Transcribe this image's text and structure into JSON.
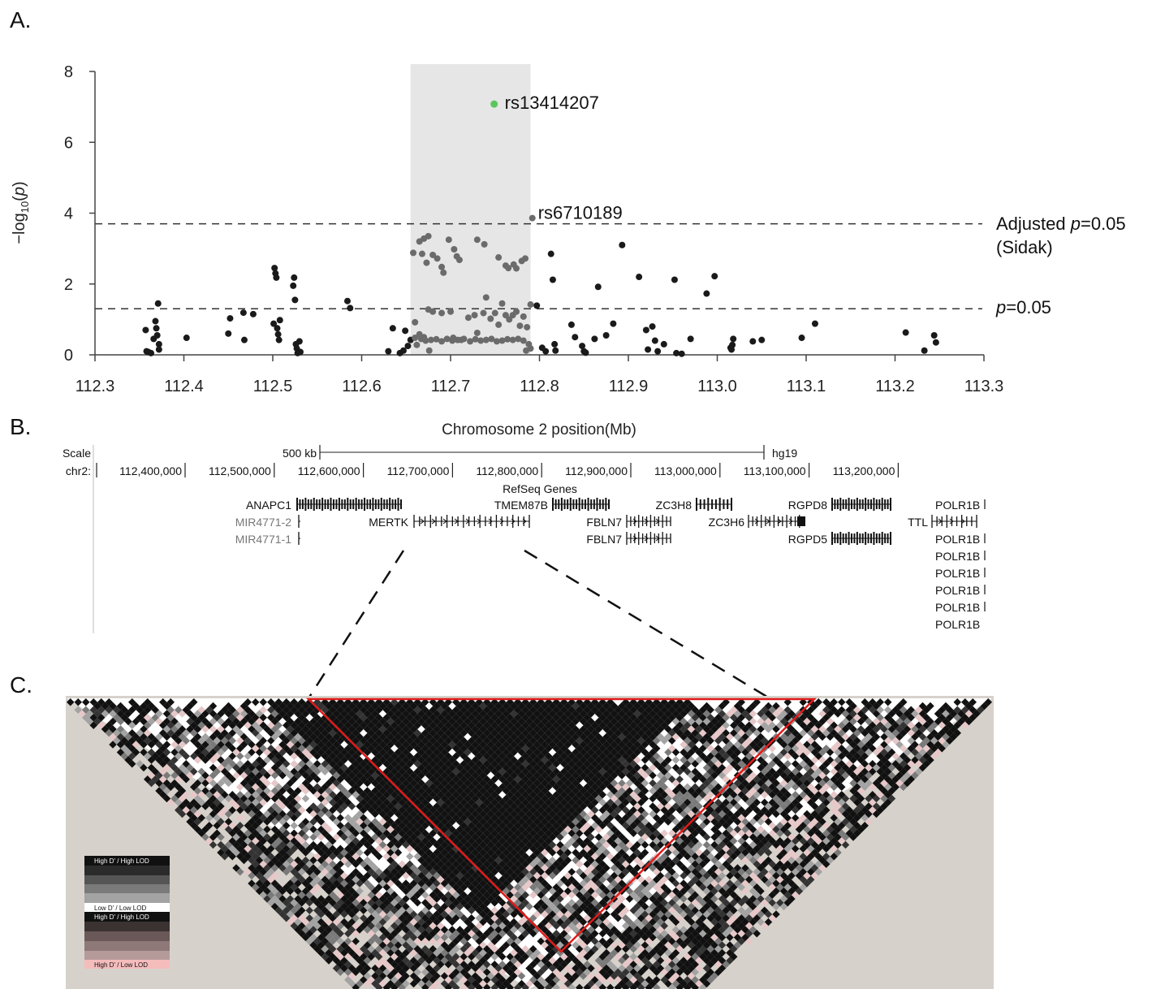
{
  "panels": {
    "a": "A.",
    "b": "B.",
    "c": "C."
  },
  "colors": {
    "highlight_region": "#e6e6e6",
    "point_dark": "#1a1a1a",
    "point_in_region": "#6b6b6b",
    "lead_snp": "#5cc65c",
    "ld_block_outline": "#e01b1b",
    "ld_background": "#d6d2cb"
  },
  "chart_data": {
    "type": "scatter",
    "title": "",
    "xlabel": "Chromosome 2 position(Mb)",
    "ylabel": "−log10(p)",
    "xlim": [
      112.3,
      113.3
    ],
    "ylim": [
      0,
      8
    ],
    "x_ticks": [
      "112.3",
      "112.4",
      "112.5",
      "112.6",
      "112.7",
      "112.8",
      "112.9",
      "113.0",
      "113.1",
      "113.2",
      "113.3"
    ],
    "y_ticks": [
      "0",
      "2",
      "4",
      "6",
      "8"
    ],
    "highlight_region": [
      112.655,
      112.79
    ],
    "thresholds": [
      {
        "name": "Adjusted p=0.05 (Sidak)",
        "label_line1_prefix": "Adjusted ",
        "label_line1_italic": "p",
        "label_line1_suffix": "=0.05",
        "label_line2": "(Sidak)",
        "y": 3.7
      },
      {
        "name": "p=0.05",
        "label_italic": "p",
        "label_suffix": "=0.05",
        "y": 1.3
      }
    ],
    "labeled_snps": [
      {
        "name": "rs13414207",
        "x": 112.749,
        "y": 7.08
      },
      {
        "name": "rs6710189",
        "x": 112.792,
        "y": 3.86
      }
    ],
    "points": [
      [
        112.357,
        0.7
      ],
      [
        112.358,
        0.1
      ],
      [
        112.36,
        0.08
      ],
      [
        112.363,
        0.05
      ],
      [
        112.366,
        0.45
      ],
      [
        112.368,
        0.95
      ],
      [
        112.369,
        0.75
      ],
      [
        112.37,
        0.55
      ],
      [
        112.371,
        1.45
      ],
      [
        112.372,
        0.3
      ],
      [
        112.372,
        0.15
      ],
      [
        112.403,
        0.48
      ],
      [
        112.45,
        0.6
      ],
      [
        112.452,
        1.03
      ],
      [
        112.467,
        1.19
      ],
      [
        112.468,
        0.42
      ],
      [
        112.478,
        1.15
      ],
      [
        112.501,
        0.88
      ],
      [
        112.502,
        2.45
      ],
      [
        112.503,
        2.3
      ],
      [
        112.504,
        2.18
      ],
      [
        112.505,
        0.75
      ],
      [
        112.506,
        0.58
      ],
      [
        112.507,
        0.42
      ],
      [
        112.508,
        0.98
      ],
      [
        112.523,
        1.95
      ],
      [
        112.524,
        2.18
      ],
      [
        112.525,
        1.55
      ],
      [
        112.526,
        0.3
      ],
      [
        112.527,
        0.18
      ],
      [
        112.528,
        0.05
      ],
      [
        112.53,
        0.38
      ],
      [
        112.531,
        0.08
      ],
      [
        112.584,
        1.52
      ],
      [
        112.587,
        1.32
      ],
      [
        112.63,
        0.1
      ],
      [
        112.635,
        0.75
      ],
      [
        112.643,
        0.05
      ],
      [
        112.647,
        0.12
      ],
      [
        112.649,
        0.68
      ],
      [
        112.652,
        0.25
      ],
      [
        112.655,
        0.42
      ],
      [
        112.797,
        1.39
      ],
      [
        112.803,
        0.2
      ],
      [
        112.807,
        0.1
      ],
      [
        112.813,
        2.85
      ],
      [
        112.815,
        2.12
      ],
      [
        112.817,
        0.3
      ],
      [
        112.818,
        0.12
      ],
      [
        112.836,
        0.85
      ],
      [
        112.84,
        0.5
      ],
      [
        112.848,
        0.25
      ],
      [
        112.85,
        0.1
      ],
      [
        112.852,
        0.06
      ],
      [
        112.862,
        0.45
      ],
      [
        112.866,
        1.92
      ],
      [
        112.875,
        0.55
      ],
      [
        112.883,
        0.88
      ],
      [
        112.893,
        3.1
      ],
      [
        112.912,
        2.2
      ],
      [
        112.92,
        0.7
      ],
      [
        112.922,
        0.15
      ],
      [
        112.927,
        0.8
      ],
      [
        112.93,
        0.4
      ],
      [
        112.933,
        0.1
      ],
      [
        112.94,
        0.3
      ],
      [
        112.952,
        2.12
      ],
      [
        112.954,
        0.05
      ],
      [
        112.96,
        0.03
      ],
      [
        112.97,
        0.45
      ],
      [
        112.988,
        1.73
      ],
      [
        112.997,
        2.22
      ],
      [
        113.015,
        0.2
      ],
      [
        113.016,
        0.15
      ],
      [
        113.017,
        0.28
      ],
      [
        113.018,
        0.45
      ],
      [
        113.04,
        0.38
      ],
      [
        113.05,
        0.42
      ],
      [
        113.095,
        0.48
      ],
      [
        113.11,
        0.88
      ],
      [
        113.212,
        0.63
      ],
      [
        113.233,
        0.12
      ],
      [
        113.244,
        0.55
      ],
      [
        113.246,
        0.35
      ]
    ],
    "region_points": [
      [
        112.658,
        2.88
      ],
      [
        112.665,
        3.2
      ],
      [
        112.668,
        2.85
      ],
      [
        112.67,
        3.28
      ],
      [
        112.673,
        2.6
      ],
      [
        112.675,
        3.35
      ],
      [
        112.68,
        2.82
      ],
      [
        112.685,
        2.72
      ],
      [
        112.69,
        2.48
      ],
      [
        112.692,
        2.32
      ],
      [
        112.698,
        3.25
      ],
      [
        112.704,
        2.98
      ],
      [
        112.707,
        2.78
      ],
      [
        112.71,
        2.68
      ],
      [
        112.73,
        3.25
      ],
      [
        112.738,
        3.12
      ],
      [
        112.754,
        2.75
      ],
      [
        112.762,
        2.52
      ],
      [
        112.765,
        2.45
      ],
      [
        112.771,
        2.55
      ],
      [
        112.774,
        2.44
      ],
      [
        112.78,
        2.65
      ],
      [
        112.784,
        2.72
      ],
      [
        112.66,
        0.92
      ],
      [
        112.665,
        0.58
      ],
      [
        112.67,
        0.5
      ],
      [
        112.675,
        1.28
      ],
      [
        112.68,
        1.22
      ],
      [
        112.69,
        1.18
      ],
      [
        112.7,
        1.22
      ],
      [
        112.703,
        0.48
      ],
      [
        112.712,
        0.42
      ],
      [
        112.72,
        1.05
      ],
      [
        112.727,
        1.12
      ],
      [
        112.73,
        0.62
      ],
      [
        112.737,
        1.18
      ],
      [
        112.74,
        1.62
      ],
      [
        112.745,
        1.02
      ],
      [
        112.75,
        1.18
      ],
      [
        112.754,
        0.85
      ],
      [
        112.758,
        1.45
      ],
      [
        112.762,
        1.12
      ],
      [
        112.766,
        1.0
      ],
      [
        112.77,
        1.12
      ],
      [
        112.774,
        1.22
      ],
      [
        112.778,
        0.82
      ],
      [
        112.782,
        1.08
      ],
      [
        112.786,
        0.78
      ],
      [
        112.79,
        1.42
      ],
      [
        112.66,
        0.48
      ],
      [
        112.667,
        0.45
      ],
      [
        112.672,
        0.4
      ],
      [
        112.678,
        0.42
      ],
      [
        112.684,
        0.44
      ],
      [
        112.69,
        0.38
      ],
      [
        112.696,
        0.45
      ],
      [
        112.702,
        0.4
      ],
      [
        112.708,
        0.42
      ],
      [
        112.715,
        0.45
      ],
      [
        112.722,
        0.38
      ],
      [
        112.728,
        0.44
      ],
      [
        112.734,
        0.4
      ],
      [
        112.74,
        0.42
      ],
      [
        112.746,
        0.45
      ],
      [
        112.752,
        0.38
      ],
      [
        112.758,
        0.4
      ],
      [
        112.764,
        0.44
      ],
      [
        112.77,
        0.42
      ],
      [
        112.776,
        0.45
      ],
      [
        112.782,
        0.4
      ],
      [
        112.788,
        0.3
      ],
      [
        112.79,
        0.18
      ],
      [
        112.785,
        0.12
      ],
      [
        112.676,
        0.12
      ],
      [
        112.662,
        0.28
      ]
    ],
    "lead_snp": [
      112.749,
      7.08
    ]
  },
  "browser": {
    "scale_label": "Scale",
    "scale_bar_label": "500 kb",
    "assembly": "hg19",
    "chr_label": "chr2:",
    "positions": [
      "112,400,000",
      "112,500,000",
      "112,600,000",
      "112,700,000",
      "112,800,000",
      "112,900,000",
      "113,000,000",
      "113,100,000",
      "113,200,000"
    ],
    "track_title": "RefSeq Genes",
    "genes": [
      {
        "name": "ANAPC1",
        "grey": false
      },
      {
        "name": "MIR4771-2",
        "grey": true
      },
      {
        "name": "MIR4771-1",
        "grey": true
      },
      {
        "name": "MERTK",
        "grey": false
      },
      {
        "name": "TMEM87B",
        "grey": false
      },
      {
        "name": "FBLN7",
        "grey": false
      },
      {
        "name": "FBLN7",
        "grey": false
      },
      {
        "name": "ZC3H8",
        "grey": false
      },
      {
        "name": "ZC3H6",
        "grey": false
      },
      {
        "name": "RGPD8",
        "grey": false
      },
      {
        "name": "RGPD5",
        "grey": false
      },
      {
        "name": "TTL",
        "grey": false
      },
      {
        "name": "POLR1B",
        "grey": false
      },
      {
        "name": "POLR1B",
        "grey": false
      },
      {
        "name": "POLR1B",
        "grey": false
      },
      {
        "name": "POLR1B",
        "grey": false
      },
      {
        "name": "POLR1B",
        "grey": false
      },
      {
        "name": "POLR1B",
        "grey": false
      },
      {
        "name": "POLR1B",
        "grey": false
      }
    ]
  },
  "ld_legend": {
    "top_high": "High D' / High LOD",
    "top_low": "Low D' / Low LOD",
    "bottom_high": "High D' / High LOD",
    "bottom_low": "High D' / Low LOD"
  }
}
